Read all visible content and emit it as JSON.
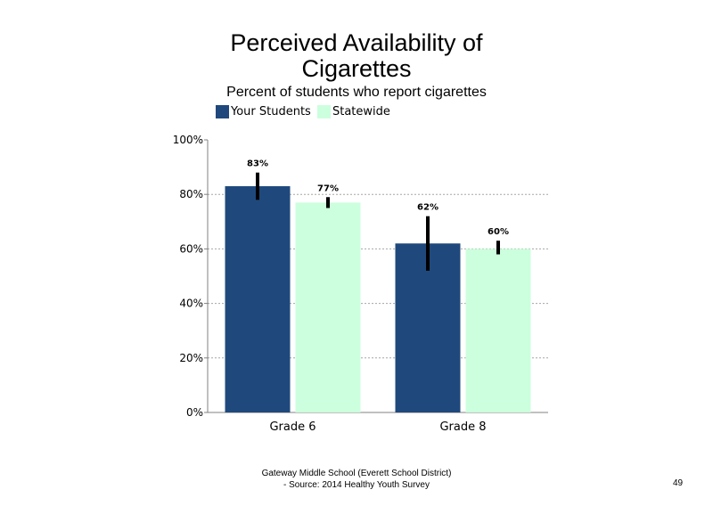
{
  "chart_data": {
    "type": "bar",
    "title": "Perceived Availability of Cigarettes",
    "subtitle": "Percent of students who report cigarettes",
    "categories": [
      "Grade 6",
      "Grade 8"
    ],
    "series": [
      {
        "name": "Your Students",
        "values": [
          83,
          62
        ],
        "error_low": [
          78,
          52
        ],
        "error_high": [
          88,
          72
        ],
        "labels": [
          "83%",
          "62%"
        ],
        "color": "#1f497d"
      },
      {
        "name": "Statewide",
        "values": [
          77,
          60
        ],
        "error_low": [
          75,
          58
        ],
        "error_high": [
          79,
          63
        ],
        "labels": [
          "77%",
          "60%"
        ],
        "color": "#ccffdd"
      }
    ],
    "ylim": [
      0,
      100
    ],
    "yticks": [
      0,
      20,
      40,
      60,
      80,
      100
    ],
    "ytick_labels": [
      "0%",
      "20%",
      "40%",
      "60%",
      "80%",
      "100%"
    ],
    "grid": true,
    "legend_position": "top-left"
  },
  "footer": {
    "line1": "Gateway Middle School (Everett School District)",
    "line2": "- Source: 2014 Healthy Youth Survey"
  },
  "page_number": "49"
}
